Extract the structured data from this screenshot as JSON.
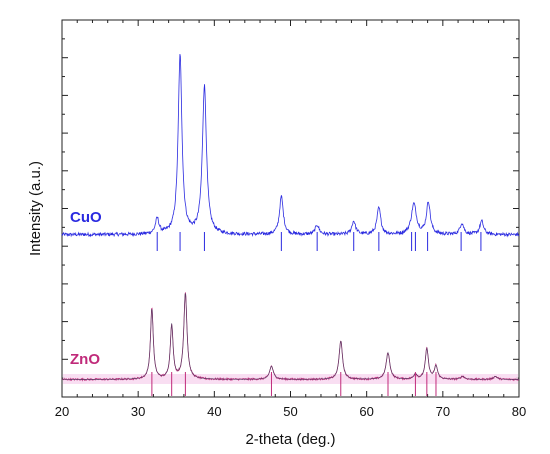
{
  "chart_data": {
    "type": "line",
    "xlabel": "2-theta (deg.)",
    "ylabel": "Intensity (a.u.)",
    "xlim": [
      20,
      80
    ],
    "x_ticks": [
      20,
      30,
      40,
      50,
      60,
      70,
      80
    ],
    "y_ticks_unlabeled": true,
    "grid": false,
    "series": [
      {
        "name": "CuO",
        "color": "#2a2ae0",
        "baseline": 0.07,
        "peaks": [
          {
            "x": 32.5,
            "height": 0.08,
            "width": 0.28
          },
          {
            "x": 35.5,
            "height": 0.94,
            "width": 0.3
          },
          {
            "x": 38.7,
            "height": 0.78,
            "width": 0.32
          },
          {
            "x": 48.8,
            "height": 0.2,
            "width": 0.3
          },
          {
            "x": 53.5,
            "height": 0.05,
            "width": 0.3
          },
          {
            "x": 58.3,
            "height": 0.07,
            "width": 0.3
          },
          {
            "x": 61.6,
            "height": 0.14,
            "width": 0.3
          },
          {
            "x": 66.2,
            "height": 0.16,
            "width": 0.4
          },
          {
            "x": 68.1,
            "height": 0.17,
            "width": 0.3
          },
          {
            "x": 72.5,
            "height": 0.06,
            "width": 0.3
          },
          {
            "x": 75.1,
            "height": 0.07,
            "width": 0.3
          }
        ],
        "reference_lines": [
          32.5,
          35.5,
          38.7,
          48.8,
          53.5,
          58.3,
          61.6,
          65.9,
          66.4,
          68.0,
          72.4,
          75.0
        ]
      },
      {
        "name": "ZnO",
        "color": "#c02a7a",
        "fit_color": "#4a4060",
        "baseline": 0.02,
        "peaks": [
          {
            "x": 31.8,
            "height": 0.7,
            "width": 0.22
          },
          {
            "x": 34.4,
            "height": 0.53,
            "width": 0.22
          },
          {
            "x": 36.2,
            "height": 0.85,
            "width": 0.25
          },
          {
            "x": 47.5,
            "height": 0.13,
            "width": 0.3
          },
          {
            "x": 56.6,
            "height": 0.38,
            "width": 0.27
          },
          {
            "x": 62.8,
            "height": 0.26,
            "width": 0.3
          },
          {
            "x": 66.4,
            "height": 0.05,
            "width": 0.25
          },
          {
            "x": 67.9,
            "height": 0.3,
            "width": 0.25
          },
          {
            "x": 69.1,
            "height": 0.13,
            "width": 0.25
          },
          {
            "x": 72.6,
            "height": 0.03,
            "width": 0.3
          },
          {
            "x": 76.9,
            "height": 0.03,
            "width": 0.3
          }
        ],
        "reference_lines": [
          31.8,
          34.4,
          36.2,
          47.5,
          56.6,
          62.8,
          66.4,
          67.9,
          69.1
        ]
      }
    ]
  }
}
